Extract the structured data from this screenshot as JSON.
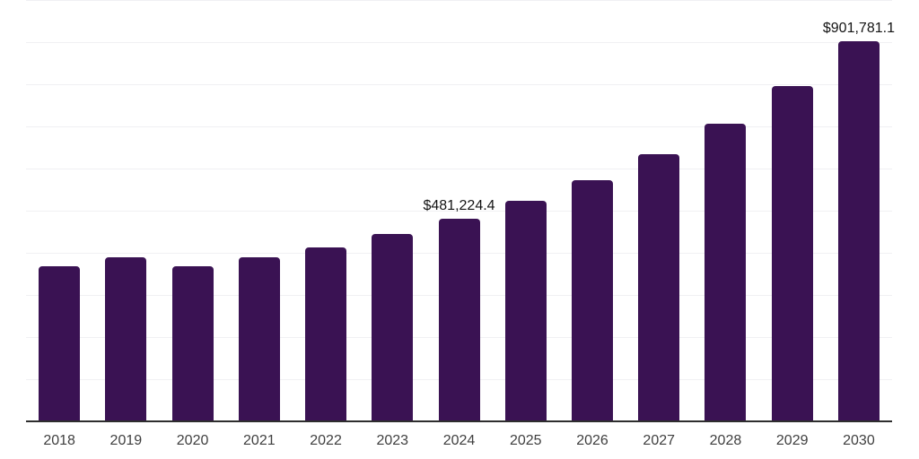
{
  "chart_style": {
    "background_color": "#ffffff",
    "bar_color": "#3A1253",
    "gridline_color": "#f0f0f3",
    "axis_line_color": "#2e2e2e",
    "tick_label_color": "#3f3f3f",
    "data_label_color": "#141414"
  },
  "chart_data": {
    "type": "bar",
    "title": "",
    "xlabel": "",
    "ylabel": "",
    "categories": [
      "2018",
      "2019",
      "2020",
      "2021",
      "2022",
      "2023",
      "2024",
      "2025",
      "2026",
      "2027",
      "2028",
      "2029",
      "2030"
    ],
    "values": [
      368000,
      389000,
      368000,
      389000,
      413000,
      445000,
      481224.4,
      523000,
      572000,
      634000,
      706000,
      796000,
      901781.1
    ],
    "ylim": [
      0,
      1000000
    ],
    "gridline_count": 10,
    "grid": "horizontal only, y-axis not labeled",
    "legend": "none",
    "data_labels": [
      {
        "category": "2024",
        "text": "$481,224.4"
      },
      {
        "category": "2030",
        "text": "$901,781.1"
      }
    ]
  }
}
